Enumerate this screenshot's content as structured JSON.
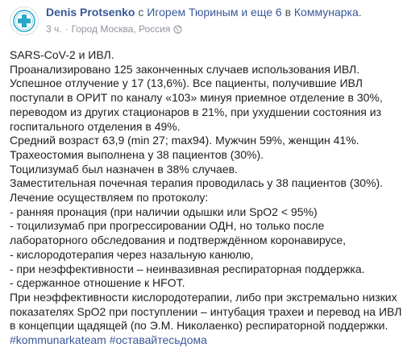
{
  "post": {
    "author": "Denis Protsenko",
    "with_prefix": "с",
    "with_names": "Игорем Тюриным и еще 6",
    "at_prefix": "в",
    "location_place": "Коммунарка.",
    "time": "3 ч.",
    "dot": "·",
    "location_city": "Город Москва, Россия",
    "privacy_icon": "globe-icon",
    "lines": [
      "SARS-CoV-2 и ИВЛ.",
      "Проанализировано 125 законченных случаев использования ИВЛ.",
      "Успешное отлучение у 17 (13,6%). Все пациенты, получившие ИВЛ",
      "поступали в ОРИТ по каналу «103» минуя приемное отделение в 30%,",
      "переводом из других стационаров в 21%, при ухудшении состояния из",
      "госпитального отделения в 49%.",
      "Средний возраст 63,9 (min 27; max94). Мужчин 59%, женщин 41%.",
      "Трахеостомия выполнена у 38 пациентов (30%).",
      "Тоцилизумаб был назначен в 38% случаев.",
      "Заместительная почечная терапия проводилась у 38 пациентов (30%).",
      "Лечение осуществляем по протоколу:",
      "- ранняя пронация (при наличии одышки или SpO2 < 95%)",
      "- тоцилизумаб при прогрессировании ОДН, но только после",
      "лабораторного обследования и подтверждённом коронавирусе,",
      "- кислородотерапия через назальную канюлю,",
      "- при неэффективности – неинвазивная респираторная поддержка.",
      "- сдержанное отношение к HFOT.",
      "При неэффективности кислородотерапии, либо при экстремально низких",
      "показателях SpO2 при поступлении – интубация трахеи и перевод на ИВЛ",
      "в концепции щадящей (по Э.М. Николаенко) респираторной поддержки."
    ],
    "hashtags": [
      "#kommunarkateam",
      "#оставайтесьдома"
    ],
    "colors": {
      "link": "#385898",
      "text": "#1c1e21",
      "meta": "#90949c",
      "avatar_cross": "#2aa7c9"
    }
  }
}
